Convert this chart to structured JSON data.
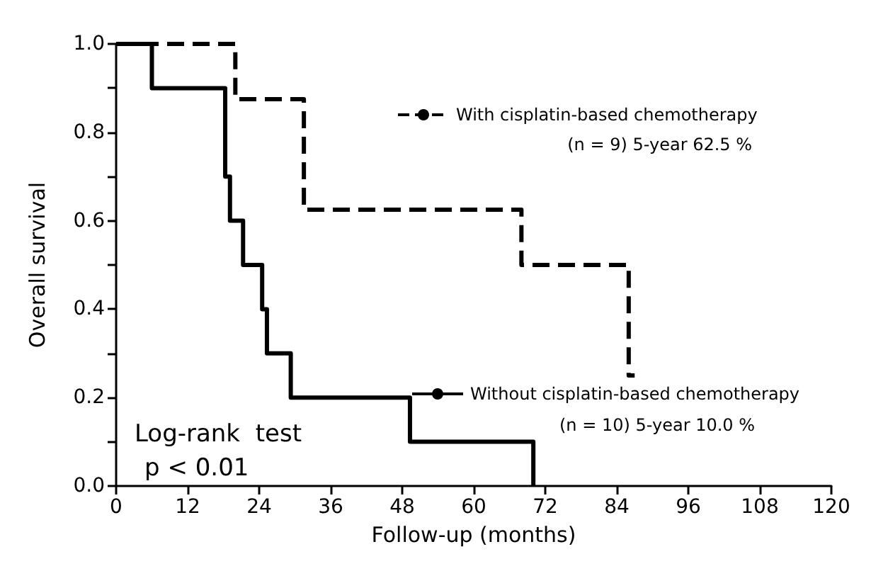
{
  "chart_data": {
    "type": "step",
    "xlabel": "Follow-up (months)",
    "ylabel": "Overall survival",
    "series": [
      {
        "name": "With cisplatin-based chemotherapy",
        "color": "#000000",
        "line_style": "dashed",
        "x": [
          0,
          20,
          31.5,
          68,
          86,
          87
        ],
        "values": [
          1,
          0.875,
          0.625,
          0.5,
          0.25,
          0.25
        ]
      },
      {
        "name": "Without cisplatin-based chemotherapy",
        "color": "#000000",
        "line_style": "solid",
        "x": [
          0,
          6,
          18.3,
          19.1,
          21.3,
          24.5,
          25.3,
          29.3,
          49.3,
          70
        ],
        "values": [
          1,
          0.9,
          0.7,
          0.6,
          0.5,
          0.4,
          0.3,
          0.2,
          0.1,
          0
        ]
      }
    ],
    "annotations": [
      "(n = 9) 5-year 62.5 %",
      "(n = 10) 5-year 10.0 %",
      "Log-rank  test",
      "p < 0.01"
    ],
    "xlim": [
      0,
      120
    ],
    "xticks": [
      0,
      12,
      24,
      36,
      48,
      60,
      72,
      84,
      96,
      108,
      120
    ],
    "ylim": [
      0,
      1
    ],
    "yticks": [
      {
        "value": 0,
        "label": "0.0"
      },
      {
        "value": 0.1,
        "label": null
      },
      {
        "value": 0.2,
        "label": "0.2"
      },
      {
        "value": 0.3,
        "label": null
      },
      {
        "value": 0.4,
        "label": "0.4"
      },
      {
        "value": 0.5,
        "label": null
      },
      {
        "value": 0.6,
        "label": "0.6"
      },
      {
        "value": 0.7,
        "label": null
      },
      {
        "value": 0.8,
        "label": "0.8"
      },
      {
        "value": 0.9,
        "label": null
      },
      {
        "value": 1,
        "label": "1.0"
      }
    ],
    "grid": false,
    "legend": "right",
    "marker": "none"
  }
}
